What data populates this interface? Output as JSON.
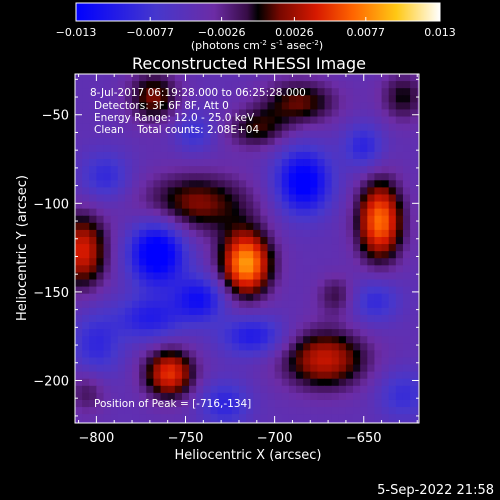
{
  "colorbar": {
    "ticks": [
      "-0.013",
      "-0.0077",
      "-0.0026",
      "0.0026",
      "0.0077",
      "0.013"
    ],
    "min": -0.013,
    "max": 0.013,
    "unit_label": "(photons cm-2 s-1 asec-2)",
    "unit_parts": {
      "a": "(photons cm",
      "b": "-2",
      "c": " s",
      "d": "-1",
      "e": " asec",
      "f": "-2",
      "g": ")"
    },
    "colors": [
      "#0000ff",
      "#4b3cc8",
      "#6a2aa2",
      "#000000",
      "#8a0c00",
      "#ff2a00",
      "#ffb600",
      "#ffffff"
    ]
  },
  "chart_data": {
    "type": "heatmap",
    "title": "Reconstructed RHESSI Image",
    "xlabel": "Heliocentric X (arcsec)",
    "ylabel": "Heliocentric Y (arcsec)",
    "xlim": [
      -812,
      -619
    ],
    "ylim": [
      -224,
      -27
    ],
    "xticks": [
      -800,
      -750,
      -700,
      -650
    ],
    "yticks": [
      -50,
      -100,
      -150,
      -200
    ],
    "annotations": [
      "8-Jul-2017 06:19:28.000 to 06:25:28.000",
      "Detectors: 3F 6F 8F, Att 0",
      "Energy Range: 12.0 - 25.0 keV",
      "Clean    Total counts: 2.08E+04",
      "Position of Peak = [-716,-134]"
    ],
    "peak": {
      "x": -716,
      "y": -134,
      "value": 0.013
    },
    "sources": [
      {
        "x": -716,
        "y": -134,
        "amp": 0.013,
        "sx": 10,
        "sy": 13
      },
      {
        "x": -641,
        "y": -110,
        "amp": 0.0115,
        "sx": 9,
        "sy": 16
      },
      {
        "x": -808,
        "y": -127,
        "amp": 0.0088,
        "sx": 10,
        "sy": 15
      },
      {
        "x": -759,
        "y": -196,
        "amp": 0.0095,
        "sx": 10,
        "sy": 10
      },
      {
        "x": -672,
        "y": -188,
        "amp": 0.0082,
        "sx": 17,
        "sy": 12
      },
      {
        "x": -744,
        "y": -100,
        "amp": 0.0064,
        "sx": 22,
        "sy": 12
      },
      {
        "x": -768,
        "y": -40,
        "amp": 0.0062,
        "sx": 10,
        "sy": 10
      },
      {
        "x": -686,
        "y": -43,
        "amp": 0.0058,
        "sx": 15,
        "sy": 9
      },
      {
        "x": -710,
        "y": -58,
        "amp": 0.0048,
        "sx": 12,
        "sy": 8
      },
      {
        "x": -628,
        "y": -40,
        "amp": 0.0045,
        "sx": 9,
        "sy": 10
      },
      {
        "x": -665,
        "y": -152,
        "amp": 0.0038,
        "sx": 8,
        "sy": 8
      },
      {
        "x": -805,
        "y": -206,
        "amp": 0.0036,
        "sx": 8,
        "sy": 9
      },
      {
        "x": -766,
        "y": -128,
        "amp": -0.0105,
        "sx": 11,
        "sy": 13
      },
      {
        "x": -684,
        "y": -88,
        "amp": -0.0095,
        "sx": 11,
        "sy": 13
      },
      {
        "x": -742,
        "y": -154,
        "amp": -0.007,
        "sx": 10,
        "sy": 9
      },
      {
        "x": -770,
        "y": -165,
        "amp": -0.0055,
        "sx": 13,
        "sy": 9
      },
      {
        "x": -712,
        "y": -175,
        "amp": -0.006,
        "sx": 13,
        "sy": 8
      },
      {
        "x": -800,
        "y": -180,
        "amp": -0.0045,
        "sx": 10,
        "sy": 14
      },
      {
        "x": -644,
        "y": -155,
        "amp": -0.0045,
        "sx": 10,
        "sy": 9
      },
      {
        "x": -728,
        "y": -213,
        "amp": -0.0048,
        "sx": 10,
        "sy": 9
      },
      {
        "x": -650,
        "y": -68,
        "amp": -0.005,
        "sx": 8,
        "sy": 9
      },
      {
        "x": -795,
        "y": -85,
        "amp": -0.0045,
        "sx": 10,
        "sy": 10
      },
      {
        "x": -745,
        "y": -60,
        "amp": -0.0038,
        "sx": 8,
        "sy": 8
      },
      {
        "x": -628,
        "y": -208,
        "amp": -0.004,
        "sx": 10,
        "sy": 10
      }
    ],
    "baseline": -0.0045
  },
  "footer": {
    "timestamp": "5-Sep-2022 21:58"
  }
}
